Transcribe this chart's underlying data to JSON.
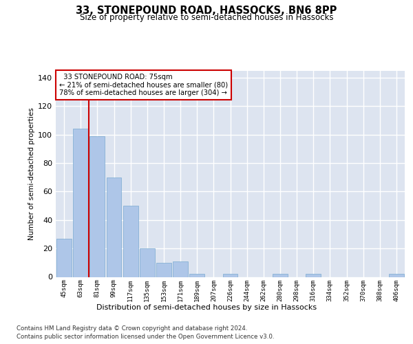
{
  "title": "33, STONEPOUND ROAD, HASSOCKS, BN6 8PP",
  "subtitle": "Size of property relative to semi-detached houses in Hassocks",
  "xlabel": "Distribution of semi-detached houses by size in Hassocks",
  "ylabel": "Number of semi-detached properties",
  "bar_color": "#aec6e8",
  "bar_edge_color": "#7aaad0",
  "background_color": "#dde4f0",
  "grid_color": "#ffffff",
  "categories": [
    "45sqm",
    "63sqm",
    "81sqm",
    "99sqm",
    "117sqm",
    "135sqm",
    "153sqm",
    "171sqm",
    "189sqm",
    "207sqm",
    "226sqm",
    "244sqm",
    "262sqm",
    "280sqm",
    "298sqm",
    "316sqm",
    "334sqm",
    "352sqm",
    "370sqm",
    "388sqm",
    "406sqm"
  ],
  "values": [
    27,
    104,
    99,
    70,
    50,
    20,
    10,
    11,
    2,
    0,
    2,
    0,
    0,
    2,
    0,
    2,
    0,
    0,
    0,
    0,
    2
  ],
  "ylim": [
    0,
    145
  ],
  "yticks": [
    0,
    20,
    40,
    60,
    80,
    100,
    120,
    140
  ],
  "property_label": "33 STONEPOUND ROAD: 75sqm",
  "pct_smaller": 21,
  "pct_larger": 78,
  "n_smaller": 80,
  "n_larger": 304,
  "vline_position": 1.5,
  "annotation_box_color": "#ffffff",
  "annotation_box_edge": "#cc0000",
  "vline_color": "#cc0000",
  "footer1": "Contains HM Land Registry data © Crown copyright and database right 2024.",
  "footer2": "Contains public sector information licensed under the Open Government Licence v3.0."
}
